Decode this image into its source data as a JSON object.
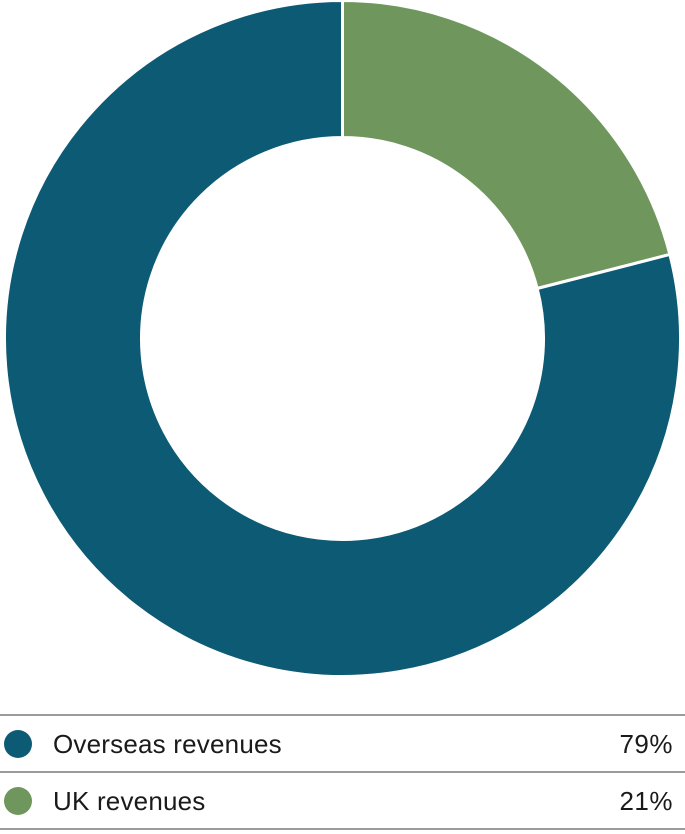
{
  "chart_data": {
    "type": "pie",
    "donut": true,
    "title": "",
    "slices": [
      {
        "label": "Overseas revenues",
        "value": 79,
        "color": "#0d5a74"
      },
      {
        "label": "UK revenues",
        "value": 21,
        "color": "#6f975d"
      }
    ],
    "unit": "%",
    "start_angle_deg": 0,
    "direction": "clockwise",
    "draw_order": [
      1,
      0
    ],
    "hole_ratio": 0.59,
    "slice_gap_color": "#ffffff",
    "legend_position": "bottom",
    "grid": false
  },
  "legend": {
    "rows": [
      {
        "swatch_icon": "teal-circle-icon",
        "label": "Overseas revenues",
        "value_label": "79%"
      },
      {
        "swatch_icon": "green-circle-icon",
        "label": "UK revenues",
        "value_label": "21%"
      }
    ]
  },
  "colors": {
    "overseas": "#0d5a74",
    "uk": "#6f975d",
    "divider": "#9b9b9b",
    "text": "#1a1a1a",
    "background": "#ffffff"
  }
}
